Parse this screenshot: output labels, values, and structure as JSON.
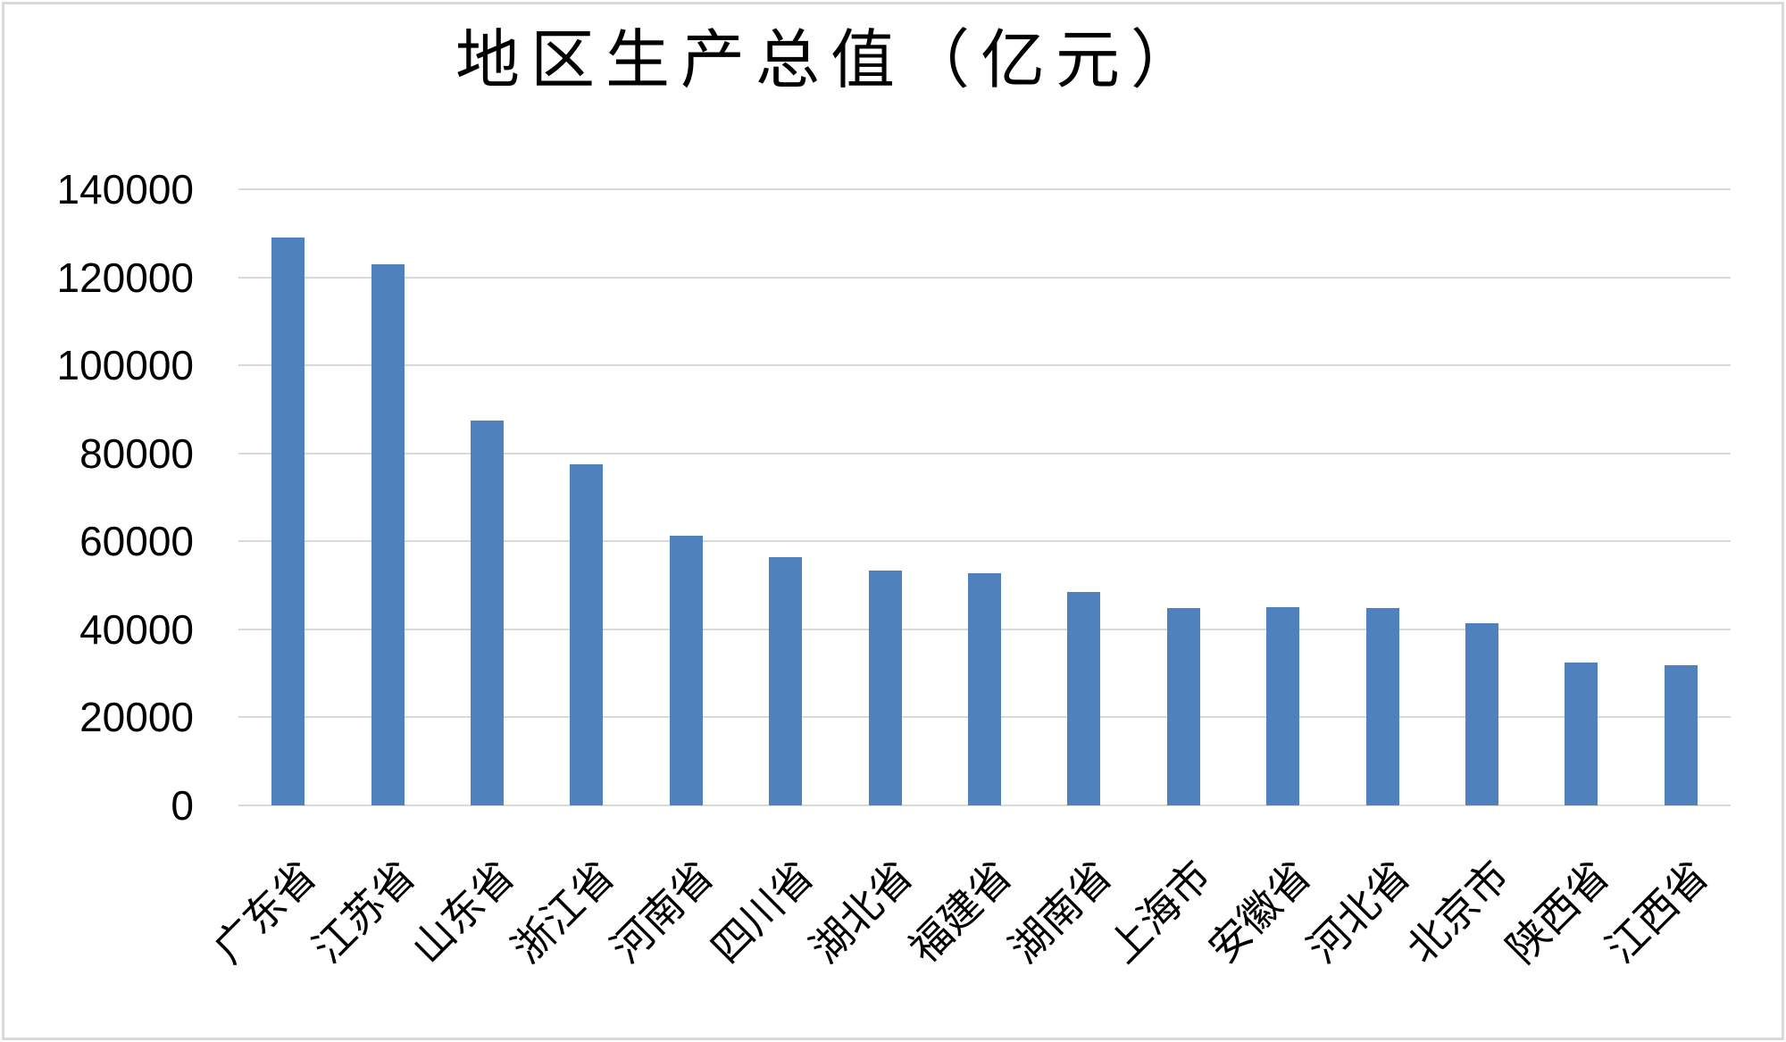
{
  "chart_data": {
    "type": "bar",
    "title": "地区生产总值（亿元）",
    "categories": [
      "广东省",
      "江苏省",
      "山东省",
      "浙江省",
      "河南省",
      "四川省",
      "湖北省",
      "福建省",
      "湖南省",
      "上海市",
      "安徽省",
      "河北省",
      "北京市",
      "陕西省",
      "江西省"
    ],
    "values": [
      129100,
      122900,
      87400,
      77600,
      61200,
      56500,
      53400,
      52800,
      48500,
      44800,
      45100,
      44800,
      41400,
      32500,
      31900
    ],
    "xlabel": "",
    "ylabel": "",
    "ylim": [
      0,
      140000
    ],
    "yticks": [
      0,
      20000,
      40000,
      60000,
      80000,
      100000,
      120000,
      140000
    ],
    "grid": "horizontal",
    "legend": "none",
    "x_label_rotation_deg": -45,
    "bar_color": "#4F81BD",
    "gridline_color": "#D9D9D9",
    "text_color": "#000000",
    "background_color": "#FFFFFF"
  }
}
